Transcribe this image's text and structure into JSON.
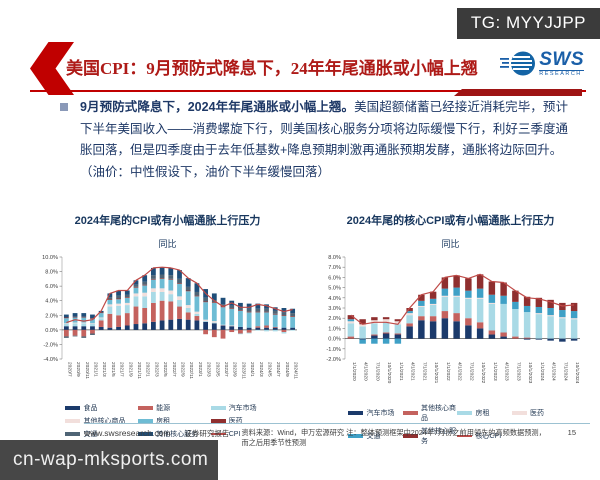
{
  "overlay": {
    "tg_label": "TG: MYYJJPP",
    "watermark": "cn-wap-mksports.com"
  },
  "header": {
    "title": "美国CPI：9月预防式降息下，24年年尾通胀或小幅上翘",
    "logo_text": "SWS",
    "logo_subtext": "RESEARCH"
  },
  "body": {
    "bold_lead": "9月预防式降息下，2024年年尾通胀或小幅上翘。",
    "rest": "美国超额储蓄已经接近消耗完毕，预计下半年美国收入——消费螺旋下行，则美国核心服务分项将边际缓慢下行，利好三季度通胀回落，但是四季度由于去年低基数+降息预期刺激再通胀预期发酵，通胀将边际回升。",
    "note": "（油价：中性假设下，油价下半年缓慢回落）"
  },
  "footer": {
    "site": "www.swsresearch.com",
    "report_type": "证券研究报告",
    "source": "资料来源：Wind，申万宏源研究",
    "note": "注：整体预测框架中2024年7月份之前用领先的高频数据预测，而之后用季节性预测",
    "page": "15"
  },
  "chart_data": [
    {
      "type": "bar",
      "subtype": "stacked-bar-with-line",
      "title": "2024年尾的CPI或有小幅通胀上行压力",
      "unit_label": "同比",
      "ylim": [
        -4,
        10
      ],
      "ystep": 2,
      "legend_cols": 3,
      "grid": false,
      "categories": [
        "2020/7",
        "2020/9",
        "2020/11",
        "2021/1",
        "2021/3",
        "2021/5",
        "2021/7",
        "2021/9",
        "2021/11",
        "2022/1",
        "2022/3",
        "2022/5",
        "2022/7",
        "2022/9",
        "2022/11",
        "2023/1",
        "2023/3",
        "2023/5",
        "2023/7",
        "2023/9",
        "2023/11",
        "2024/1",
        "2024/3",
        "2024/5",
        "2024/7",
        "2024/9",
        "2024/11"
      ],
      "series": [
        {
          "name": "食品",
          "color": "#1b3a6b",
          "values": [
            0.5,
            0.5,
            0.5,
            0.5,
            0.4,
            0.3,
            0.4,
            0.6,
            0.8,
            0.9,
            1.1,
            1.3,
            1.4,
            1.5,
            1.4,
            1.3,
            1.1,
            0.9,
            0.6,
            0.5,
            0.4,
            0.3,
            0.3,
            0.3,
            0.3,
            0.3,
            0.3
          ]
        },
        {
          "name": "能源",
          "color": "#c4625e",
          "values": [
            -0.9,
            -0.8,
            -0.9,
            -0.5,
            0.9,
            1.9,
            1.6,
            1.7,
            2.4,
            2.1,
            2.6,
            2.7,
            2.5,
            1.7,
            1.0,
            0.6,
            -0.6,
            -1.0,
            -1.2,
            -0.3,
            -0.5,
            -0.4,
            0.2,
            0.3,
            0.1,
            -0.3,
            0.0
          ]
        },
        {
          "name": "汽车市场",
          "color": "#a9dae6",
          "values": [
            0.3,
            0.4,
            0.4,
            0.3,
            0.3,
            1.0,
            1.3,
            1.1,
            1.4,
            1.6,
            1.5,
            1.2,
            1.0,
            0.9,
            0.6,
            0.3,
            0.1,
            0.1,
            0.0,
            0.0,
            -0.1,
            -0.1,
            -0.1,
            -0.2,
            -0.2,
            -0.2,
            -0.1
          ]
        },
        {
          "name": "其他核心商品",
          "color": "#f2dfdc",
          "values": [
            0.1,
            0.1,
            0.1,
            0.1,
            0.1,
            0.3,
            0.3,
            0.3,
            0.4,
            0.5,
            0.5,
            0.5,
            0.5,
            0.5,
            0.4,
            0.3,
            0.2,
            0.2,
            0.1,
            0.1,
            0.0,
            0.0,
            0.0,
            0.0,
            0.0,
            0.0,
            0.0
          ]
        },
        {
          "name": "房租",
          "color": "#6ebcd4",
          "values": [
            0.7,
            0.7,
            0.7,
            0.6,
            0.6,
            0.6,
            0.6,
            0.7,
            0.8,
            1.0,
            1.2,
            1.3,
            1.5,
            1.7,
            1.9,
            2.1,
            2.4,
            2.5,
            2.4,
            2.3,
            2.2,
            2.1,
            1.9,
            1.8,
            1.7,
            1.6,
            1.5
          ]
        },
        {
          "name": "医药",
          "color": "#8f2f2f",
          "values": [
            0.1,
            0.1,
            0.1,
            0.1,
            0.1,
            0.1,
            0.1,
            0.1,
            0.1,
            0.1,
            0.1,
            0.1,
            0.1,
            0.1,
            0.1,
            0.1,
            0.1,
            0.1,
            0.1,
            0.1,
            0.1,
            0.1,
            0.1,
            0.1,
            0.1,
            0.1,
            0.1
          ]
        },
        {
          "name": "交通",
          "color": "#4f6475",
          "values": [
            -0.2,
            -0.1,
            -0.2,
            -0.2,
            0.0,
            0.3,
            0.4,
            0.3,
            0.3,
            0.4,
            0.5,
            0.5,
            0.5,
            0.6,
            0.5,
            0.5,
            0.5,
            0.3,
            0.3,
            0.3,
            0.3,
            0.4,
            0.4,
            0.4,
            0.4,
            0.4,
            0.4
          ]
        },
        {
          "name": "其他核心服务",
          "color": "#1f4e79",
          "values": [
            0.4,
            0.5,
            0.5,
            0.5,
            0.2,
            0.5,
            0.7,
            0.6,
            0.6,
            0.9,
            1.0,
            1.0,
            1.0,
            1.2,
            1.2,
            1.2,
            1.2,
            0.9,
            0.9,
            0.7,
            0.7,
            0.7,
            0.7,
            0.6,
            0.5,
            0.6,
            0.6
          ]
        }
      ],
      "line": {
        "name": "CPI",
        "color": "#bf4a47",
        "values": [
          1.0,
          1.4,
          1.2,
          1.4,
          2.6,
          5.0,
          5.4,
          5.4,
          6.8,
          7.5,
          8.5,
          8.6,
          8.5,
          8.2,
          7.1,
          6.4,
          5.0,
          4.0,
          3.2,
          3.7,
          3.1,
          3.1,
          3.5,
          3.3,
          2.9,
          2.5,
          2.8
        ]
      }
    },
    {
      "type": "bar",
      "subtype": "stacked-bar-with-line",
      "title": "2024年尾的核心CPI或有小幅通胀上行压力",
      "unit_label": "同比",
      "ylim": [
        -2,
        8
      ],
      "ystep": 1,
      "legend_cols": 4,
      "grid": false,
      "categories": [
        "1/1/2020",
        "4/1/2020",
        "7/1/2020",
        "10/1/2020",
        "1/1/2021",
        "4/1/2021",
        "7/1/2021",
        "10/1/2021",
        "1/1/2022",
        "4/1/2022",
        "7/1/2022",
        "10/1/2022",
        "1/1/2023",
        "4/1/2023",
        "7/1/2023",
        "10/1/2023",
        "1/1/2024",
        "4/1/2024",
        "7/1/2024",
        "10/1/2024"
      ],
      "series": [
        {
          "name": "汽车市场",
          "color": "#1b3a6b",
          "values": [
            0.0,
            -0.1,
            0.3,
            0.5,
            0.4,
            1.2,
            1.8,
            1.7,
            2.0,
            1.7,
            1.3,
            1.0,
            0.4,
            0.2,
            0.0,
            -0.1,
            -0.1,
            -0.2,
            -0.3,
            -0.2
          ]
        },
        {
          "name": "其他核心商品",
          "color": "#c4625e",
          "values": [
            0.2,
            0.0,
            0.1,
            0.1,
            0.1,
            0.3,
            0.4,
            0.5,
            0.7,
            0.8,
            0.7,
            0.6,
            0.4,
            0.4,
            0.2,
            0.1,
            0.0,
            0.0,
            0.0,
            0.0
          ]
        },
        {
          "name": "房租",
          "color": "#a9dae6",
          "values": [
            1.3,
            1.2,
            1.1,
            1.0,
            0.9,
            0.8,
            0.9,
            1.1,
            1.4,
            1.6,
            1.9,
            2.3,
            2.6,
            2.8,
            2.7,
            2.5,
            2.4,
            2.2,
            2.0,
            1.9
          ]
        },
        {
          "name": "医药",
          "color": "#f2dfdc",
          "values": [
            0.2,
            0.2,
            0.3,
            0.3,
            0.3,
            0.2,
            0.1,
            0.1,
            0.1,
            0.1,
            0.1,
            0.1,
            0.1,
            0.0,
            0.0,
            0.0,
            0.1,
            0.1,
            0.1,
            0.1
          ]
        },
        {
          "name": "交通",
          "color": "#3fa0c6",
          "values": [
            0.2,
            -0.4,
            -0.5,
            -0.5,
            -0.5,
            0.2,
            0.5,
            0.5,
            0.7,
            0.8,
            0.7,
            0.9,
            0.8,
            0.8,
            0.7,
            0.6,
            0.6,
            0.7,
            0.7,
            0.7
          ]
        },
        {
          "name": "其他核心服务",
          "color": "#8f2f2f",
          "values": [
            0.4,
            0.5,
            0.3,
            0.2,
            0.2,
            0.3,
            0.6,
            0.7,
            1.1,
            1.2,
            1.2,
            1.4,
            1.3,
            1.3,
            1.1,
            0.9,
            0.9,
            0.8,
            0.7,
            0.8
          ]
        }
      ],
      "line": {
        "name": "核心CPI",
        "color": "#bf4a47",
        "values": [
          2.3,
          1.4,
          1.6,
          1.6,
          1.4,
          3.0,
          4.3,
          4.6,
          6.0,
          6.2,
          5.9,
          6.3,
          5.6,
          5.5,
          4.7,
          4.0,
          3.9,
          3.6,
          3.2,
          3.3
        ]
      }
    }
  ]
}
